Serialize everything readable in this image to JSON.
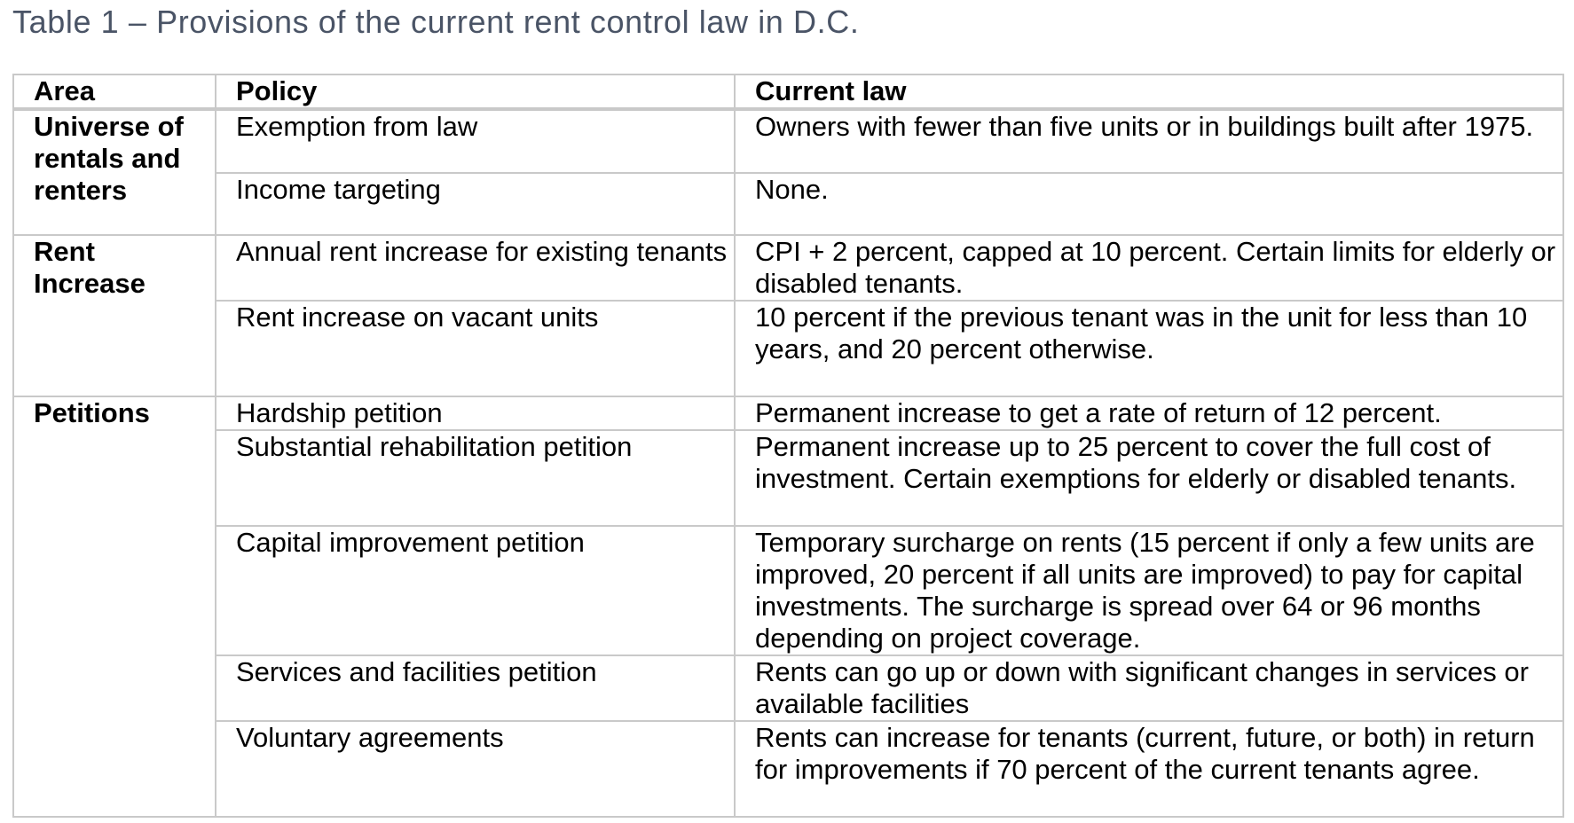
{
  "caption": "Table 1 – Provisions of the current rent control law in D.C.",
  "headers": {
    "area": "Area",
    "policy": "Policy",
    "current_law": "Current law"
  },
  "groups": [
    {
      "area": "Universe of rentals and renters",
      "rows": [
        {
          "policy": "Exemption from law",
          "law": "Owners with fewer than five units or in buildings built after 1975."
        },
        {
          "policy": "Income targeting",
          "law": "None."
        }
      ]
    },
    {
      "area": "Rent Increase",
      "rows": [
        {
          "policy": "Annual rent increase for existing tenants",
          "law": "CPI + 2 percent, capped at 10 percent. Certain limits for elderly or disabled tenants."
        },
        {
          "policy": "Rent increase on vacant units",
          "law": "10 percent if the previous tenant was in the unit for less than 10 years, and 20 percent otherwise."
        }
      ]
    },
    {
      "area": "Petitions",
      "rows": [
        {
          "policy": "Hardship petition",
          "law": "Permanent increase to get a rate of return of 12 percent."
        },
        {
          "policy": "Substantial rehabilitation petition",
          "law": "Permanent increase up to 25 percent to cover the full cost of investment. Certain exemptions for elderly or disabled tenants."
        },
        {
          "policy": "Capital improvement petition",
          "law": "Temporary surcharge on rents (15 percent if only a few units are improved, 20 percent if all units are improved) to pay for capital investments. The surcharge is spread over 64 or 96 months depending on project coverage."
        },
        {
          "policy": "Services and facilities petition",
          "law": "Rents can go up or down with significant changes in services or available facilities"
        },
        {
          "policy": "Voluntary agreements",
          "law": "Rents can increase for tenants (current, future, or both) in return for improvements if 70 percent of the current tenants agree."
        }
      ]
    }
  ]
}
